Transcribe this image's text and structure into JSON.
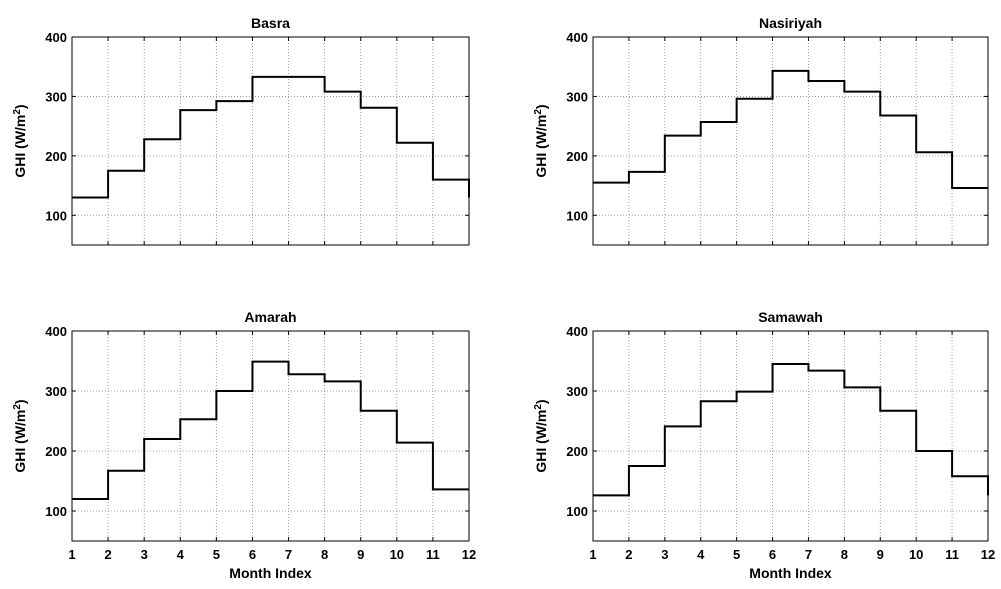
{
  "chart_data": [
    {
      "type": "line",
      "step": "post",
      "title": "Basra",
      "xlabel": "",
      "ylabel": "GHI (W/m²)",
      "x": [
        1,
        2,
        3,
        4,
        5,
        6,
        7,
        8,
        9,
        10,
        11,
        12
      ],
      "values": [
        130,
        175,
        228,
        277,
        292,
        333,
        333,
        308,
        281,
        222,
        160,
        130
      ],
      "xlim": [
        1,
        12
      ],
      "ylim": [
        50,
        400
      ],
      "yticks": [
        100,
        200,
        300,
        400
      ],
      "xticks": [
        1,
        2,
        3,
        4,
        5,
        6,
        7,
        8,
        9,
        10,
        11,
        12
      ],
      "xticklabels_visible": false,
      "grid": true
    },
    {
      "type": "line",
      "step": "post",
      "title": "Nasiriyah",
      "xlabel": "",
      "ylabel": "GHI (W/m²)",
      "x": [
        1,
        2,
        3,
        4,
        5,
        6,
        7,
        8,
        9,
        10,
        11,
        12
      ],
      "values": [
        155,
        173,
        234,
        257,
        296,
        343,
        326,
        308,
        268,
        206,
        146,
        146
      ],
      "xlim": [
        1,
        12
      ],
      "ylim": [
        50,
        400
      ],
      "yticks": [
        100,
        200,
        300,
        400
      ],
      "xticks": [
        1,
        2,
        3,
        4,
        5,
        6,
        7,
        8,
        9,
        10,
        11,
        12
      ],
      "xticklabels_visible": false,
      "grid": true
    },
    {
      "type": "line",
      "step": "post",
      "title": "Amarah",
      "xlabel": "Month Index",
      "ylabel": "GHI (W/m²)",
      "x": [
        1,
        2,
        3,
        4,
        5,
        6,
        7,
        8,
        9,
        10,
        11,
        12
      ],
      "values": [
        120,
        167,
        220,
        253,
        300,
        349,
        328,
        316,
        267,
        214,
        136,
        136
      ],
      "xlim": [
        1,
        12
      ],
      "ylim": [
        50,
        400
      ],
      "yticks": [
        100,
        200,
        300,
        400
      ],
      "xticks": [
        1,
        2,
        3,
        4,
        5,
        6,
        7,
        8,
        9,
        10,
        11,
        12
      ],
      "xticklabels_visible": true,
      "grid": true
    },
    {
      "type": "line",
      "step": "post",
      "title": "Samawah",
      "xlabel": "Month Index",
      "ylabel": "GHI (W/m²)",
      "x": [
        1,
        2,
        3,
        4,
        5,
        6,
        7,
        8,
        9,
        10,
        11,
        12
      ],
      "values": [
        126,
        175,
        241,
        283,
        299,
        345,
        334,
        306,
        267,
        200,
        158,
        126
      ],
      "xlim": [
        1,
        12
      ],
      "ylim": [
        50,
        400
      ],
      "yticks": [
        100,
        200,
        300,
        400
      ],
      "xticks": [
        1,
        2,
        3,
        4,
        5,
        6,
        7,
        8,
        9,
        10,
        11,
        12
      ],
      "xticklabels_visible": true,
      "grid": true
    }
  ],
  "colors": {
    "line": "#000000",
    "grid": "#888888",
    "axes": "#000000",
    "background": "#ffffff"
  }
}
